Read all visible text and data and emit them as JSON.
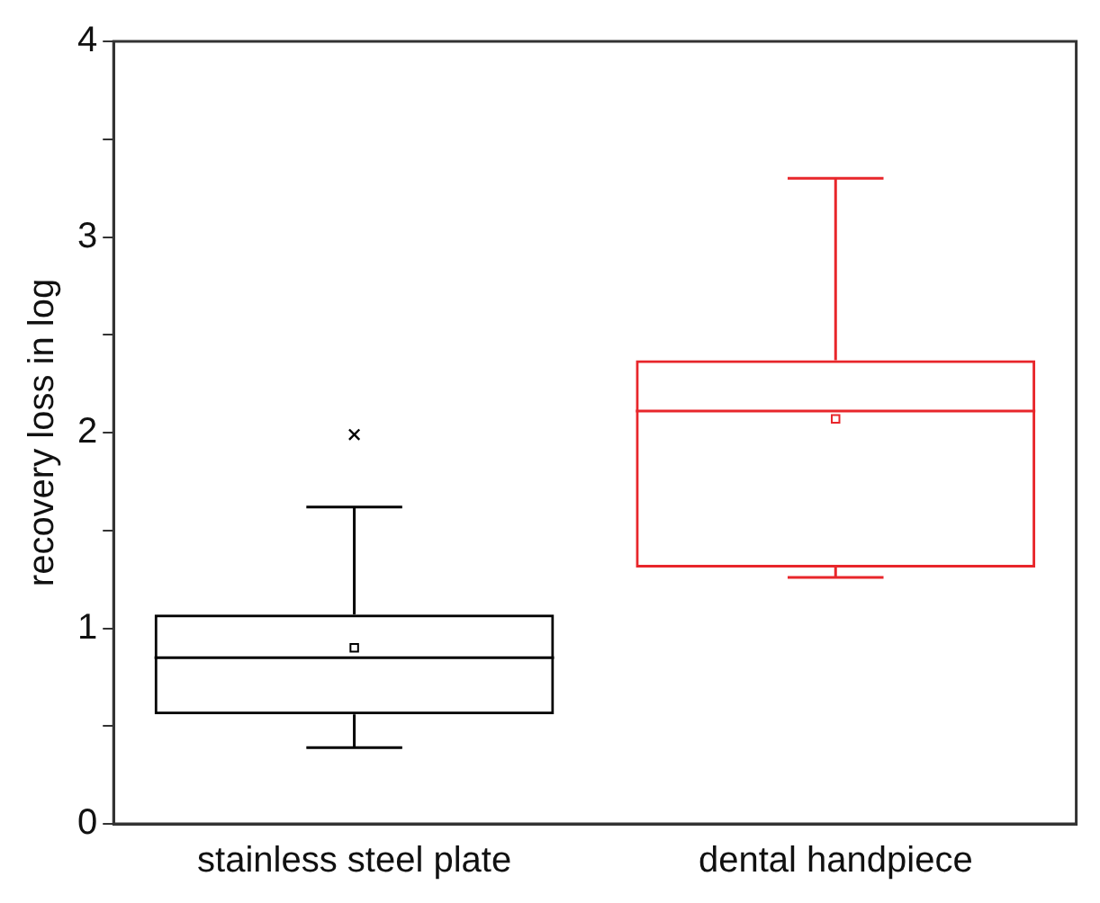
{
  "chart_data": {
    "type": "box",
    "ylabel": "recovery loss in log",
    "categories": [
      "stainless steel plate",
      "dental handpiece"
    ],
    "colors": [
      "#000000",
      "#e8262b"
    ],
    "boxes": [
      {
        "low": 0.39,
        "q1": 0.56,
        "median": 0.85,
        "q3": 1.07,
        "high": 1.62,
        "mean": 0.9,
        "outliers": [
          1.99
        ]
      },
      {
        "low": 1.26,
        "q1": 1.31,
        "median": 2.11,
        "q3": 2.37,
        "high": 3.3,
        "mean": 2.07
      }
    ],
    "ylim": [
      0,
      4
    ],
    "yticks": [
      0,
      {
        "value": 0.5,
        "label": null
      },
      1,
      {
        "value": 1.5,
        "label": null
      },
      2,
      {
        "value": 2.5,
        "label": null
      },
      3,
      {
        "value": 3.5,
        "label": null
      },
      4
    ],
    "grid": false,
    "legend": false
  }
}
